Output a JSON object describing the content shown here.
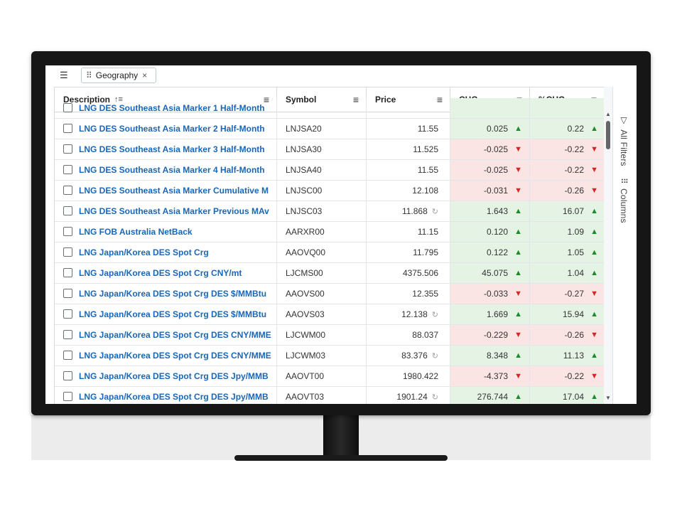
{
  "toolbar": {
    "list_icon": "list-indent-icon",
    "group_chip": {
      "label": "Geography",
      "close_glyph": "×"
    }
  },
  "columns": {
    "description": "Description",
    "symbol": "Symbol",
    "price": "Price",
    "chg": "CHG",
    "pct_chg": "%CHG"
  },
  "side_panel": {
    "filters_label": "All Filters",
    "columns_label": "Columns"
  },
  "partial_row": {
    "description": "LNG DES Southeast Asia Marker 1 Half-Month"
  },
  "rows": [
    {
      "description": "LNG DES Southeast Asia Marker 2 Half-Month",
      "symbol": "LNJSA20",
      "price": "11.55",
      "recalc": false,
      "chg": "0.025",
      "pct": "0.22",
      "dir": "up"
    },
    {
      "description": "LNG DES Southeast Asia Marker 3 Half-Month",
      "symbol": "LNJSA30",
      "price": "11.525",
      "recalc": false,
      "chg": "-0.025",
      "pct": "-0.22",
      "dir": "down"
    },
    {
      "description": "LNG DES Southeast Asia Marker 4 Half-Month",
      "symbol": "LNJSA40",
      "price": "11.55",
      "recalc": false,
      "chg": "-0.025",
      "pct": "-0.22",
      "dir": "down"
    },
    {
      "description": "LNG DES Southeast Asia Marker Cumulative M",
      "symbol": "LNJSC00",
      "price": "12.108",
      "recalc": false,
      "chg": "-0.031",
      "pct": "-0.26",
      "dir": "down"
    },
    {
      "description": "LNG DES Southeast Asia Marker Previous MAv",
      "symbol": "LNJSC03",
      "price": "11.868",
      "recalc": true,
      "chg": "1.643",
      "pct": "16.07",
      "dir": "up"
    },
    {
      "description": "LNG FOB Australia NetBack",
      "symbol": "AARXR00",
      "price": "11.15",
      "recalc": false,
      "chg": "0.120",
      "pct": "1.09",
      "dir": "up"
    },
    {
      "description": "LNG Japan/Korea DES Spot Crg",
      "symbol": "AAOVQ00",
      "price": "11.795",
      "recalc": false,
      "chg": "0.122",
      "pct": "1.05",
      "dir": "up"
    },
    {
      "description": "LNG Japan/Korea DES Spot Crg CNY/mt",
      "symbol": "LJCMS00",
      "price": "4375.506",
      "recalc": false,
      "chg": "45.075",
      "pct": "1.04",
      "dir": "up"
    },
    {
      "description": "LNG Japan/Korea DES Spot Crg DES $/MMBtu",
      "symbol": "AAOVS00",
      "price": "12.355",
      "recalc": false,
      "chg": "-0.033",
      "pct": "-0.27",
      "dir": "down"
    },
    {
      "description": "LNG Japan/Korea DES Spot Crg DES $/MMBtu",
      "symbol": "AAOVS03",
      "price": "12.138",
      "recalc": true,
      "chg": "1.669",
      "pct": "15.94",
      "dir": "up"
    },
    {
      "description": "LNG Japan/Korea DES Spot Crg DES CNY/MME",
      "symbol": "LJCWM00",
      "price": "88.037",
      "recalc": false,
      "chg": "-0.229",
      "pct": "-0.26",
      "dir": "down"
    },
    {
      "description": "LNG Japan/Korea DES Spot Crg DES CNY/MME",
      "symbol": "LJCWM03",
      "price": "83.376",
      "recalc": true,
      "chg": "8.348",
      "pct": "11.13",
      "dir": "up"
    },
    {
      "description": "LNG Japan/Korea DES Spot Crg DES Jpy/MMB",
      "symbol": "AAOVT00",
      "price": "1980.422",
      "recalc": false,
      "chg": "-4.373",
      "pct": "-0.22",
      "dir": "down"
    },
    {
      "description": "LNG Japan/Korea DES Spot Crg DES Jpy/MMB",
      "symbol": "AAOVT03",
      "price": "1901.24",
      "recalc": true,
      "chg": "276.744",
      "pct": "17.04",
      "dir": "up"
    }
  ],
  "colors": {
    "link": "#1a66b7",
    "positive_bg": "#e4f3e4",
    "negative_bg": "#fbe4e4",
    "up_arrow": "#1f8a2c",
    "down_arrow": "#d02828"
  }
}
